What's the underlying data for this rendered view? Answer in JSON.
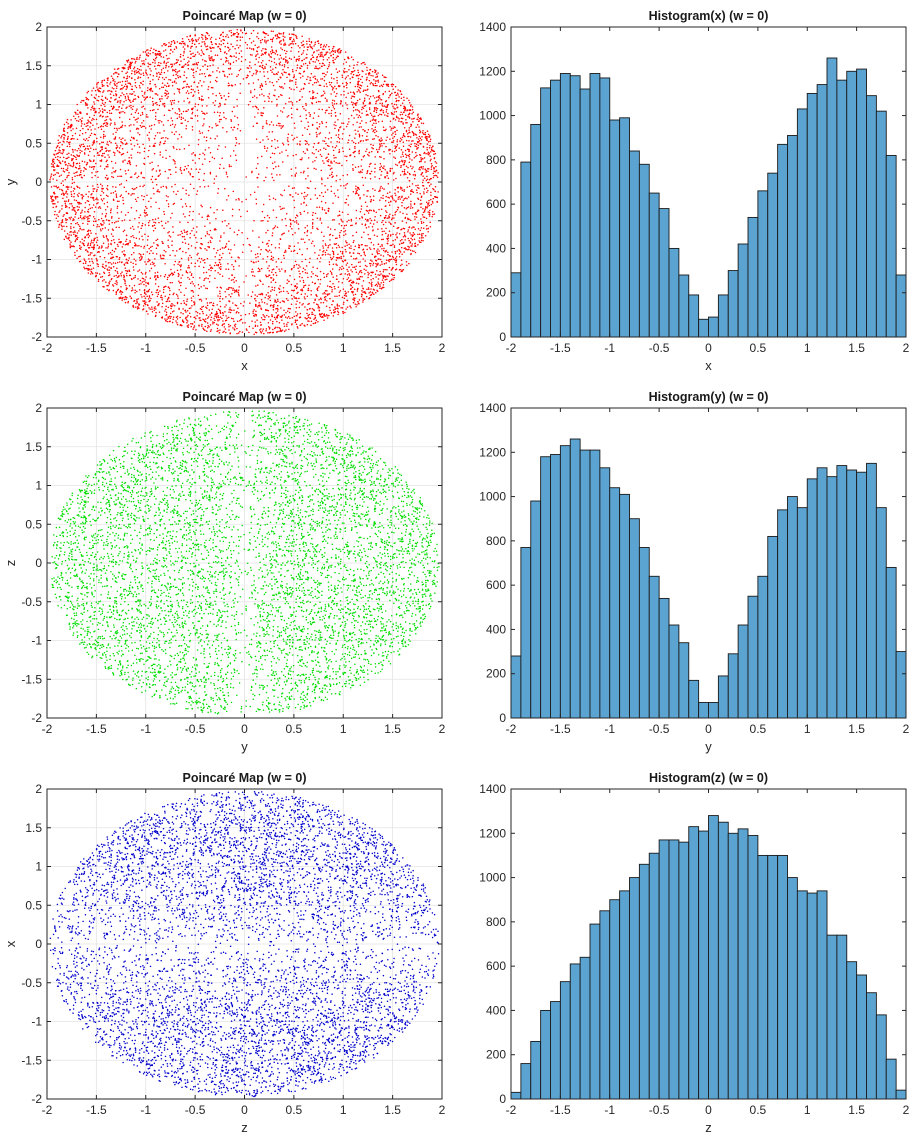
{
  "chart_data": [
    {
      "type": "scatter",
      "title": "Poincaré Map (w = 0)",
      "xlabel": "x",
      "ylabel": "y",
      "xlim": [
        -2,
        2
      ],
      "ylim": [
        -2,
        2
      ],
      "xticks": [
        -2,
        -1.5,
        -1,
        -0.5,
        0,
        0.5,
        1,
        1.5,
        2
      ],
      "yticks": [
        -2,
        -1.5,
        -1,
        -0.5,
        0,
        0.5,
        1,
        1.5,
        2
      ],
      "grid": true,
      "color": "#ff0000",
      "point_cloud": {
        "boundary": "ellipse x^2/3.9^1 + y^2/4 <= 1 (semi-axes ~1.97 x 1.97)",
        "count": 6500,
        "density": "concentrated near ellipse boundary, sparse near center and along x = 0 and y = 0 lines"
      }
    },
    {
      "type": "bar",
      "title": "Histogram(x) (w = 0)",
      "xlabel": "x",
      "ylabel": "",
      "xlim": [
        -2,
        2
      ],
      "ylim": [
        0,
        1400
      ],
      "xticks": [
        -2,
        -1.5,
        -1,
        -0.5,
        0,
        0.5,
        1,
        1.5,
        2
      ],
      "yticks": [
        0,
        200,
        400,
        600,
        800,
        1000,
        1200,
        1400
      ],
      "bin_edges_range": [
        -2,
        2
      ],
      "bin_width": 0.1,
      "color": "#5ba3d0",
      "values": [
        290,
        790,
        960,
        1125,
        1160,
        1190,
        1180,
        1120,
        1190,
        1170,
        980,
        990,
        840,
        780,
        650,
        580,
        400,
        280,
        190,
        80,
        90,
        190,
        300,
        420,
        540,
        660,
        740,
        870,
        910,
        1030,
        1100,
        1140,
        1260,
        1160,
        1200,
        1210,
        1090,
        1020,
        820,
        280
      ]
    },
    {
      "type": "scatter",
      "title": "Poincaré Map (w = 0)",
      "xlabel": "y",
      "ylabel": "z",
      "xlim": [
        -2,
        2
      ],
      "ylim": [
        -2,
        2
      ],
      "xticks": [
        -2,
        -1.5,
        -1,
        -0.5,
        0,
        0.5,
        1,
        1.5,
        2
      ],
      "yticks": [
        -2,
        -1.5,
        -1,
        -0.5,
        0,
        0.5,
        1,
        1.5,
        2
      ],
      "grid": true,
      "color": "#00dd00",
      "point_cloud": {
        "boundary": "ellipse semi-axes ~1.97 (y) x 1.95 (z)",
        "count": 6500,
        "density": "fairly uniform, sparse band around y = 0"
      }
    },
    {
      "type": "bar",
      "title": "Histogram(y) (w = 0)",
      "xlabel": "y",
      "ylabel": "",
      "xlim": [
        -2,
        2
      ],
      "ylim": [
        0,
        1400
      ],
      "xticks": [
        -2,
        -1.5,
        -1,
        -0.5,
        0,
        0.5,
        1,
        1.5,
        2
      ],
      "yticks": [
        0,
        200,
        400,
        600,
        800,
        1000,
        1200,
        1400
      ],
      "bin_edges_range": [
        -2,
        2
      ],
      "bin_width": 0.1,
      "color": "#5ba3d0",
      "values": [
        280,
        770,
        980,
        1180,
        1190,
        1230,
        1260,
        1210,
        1210,
        1130,
        1040,
        1010,
        900,
        770,
        640,
        540,
        420,
        340,
        170,
        70,
        70,
        190,
        290,
        420,
        550,
        640,
        820,
        940,
        1000,
        950,
        1080,
        1130,
        1090,
        1140,
        1120,
        1110,
        1150,
        950,
        680,
        300
      ]
    },
    {
      "type": "scatter",
      "title": "Poincaré Map (w = 0)",
      "xlabel": "z",
      "ylabel": "x",
      "xlim": [
        -2,
        2
      ],
      "ylim": [
        -2,
        2
      ],
      "xticks": [
        -2,
        -1.5,
        -1,
        -0.5,
        0,
        0.5,
        1,
        1.5,
        2
      ],
      "yticks": [
        -2,
        -1.5,
        -1,
        -0.5,
        0,
        0.5,
        1,
        1.5,
        2
      ],
      "grid": true,
      "color": "#0000cc",
      "point_cloud": {
        "boundary": "ellipse semi-axes ~1.95 (z) x 1.97 (x)",
        "count": 6500,
        "density": "denser at top and bottom, sparse band around x = 0"
      }
    },
    {
      "type": "bar",
      "title": "Histogram(z) (w = 0)",
      "xlabel": "z",
      "ylabel": "",
      "xlim": [
        -2,
        2
      ],
      "ylim": [
        0,
        1400
      ],
      "xticks": [
        -2,
        -1.5,
        -1,
        -0.5,
        0,
        0.5,
        1,
        1.5,
        2
      ],
      "yticks": [
        0,
        200,
        400,
        600,
        800,
        1000,
        1200,
        1400
      ],
      "bin_edges_range": [
        -2,
        2
      ],
      "bin_width": 0.1,
      "color": "#5ba3d0",
      "values": [
        30,
        160,
        260,
        400,
        440,
        530,
        610,
        640,
        790,
        850,
        900,
        940,
        1000,
        1060,
        1110,
        1170,
        1170,
        1160,
        1230,
        1210,
        1280,
        1250,
        1200,
        1220,
        1190,
        1100,
        1100,
        1100,
        1000,
        940,
        930,
        940,
        740,
        740,
        620,
        560,
        480,
        380,
        180,
        40
      ]
    }
  ]
}
